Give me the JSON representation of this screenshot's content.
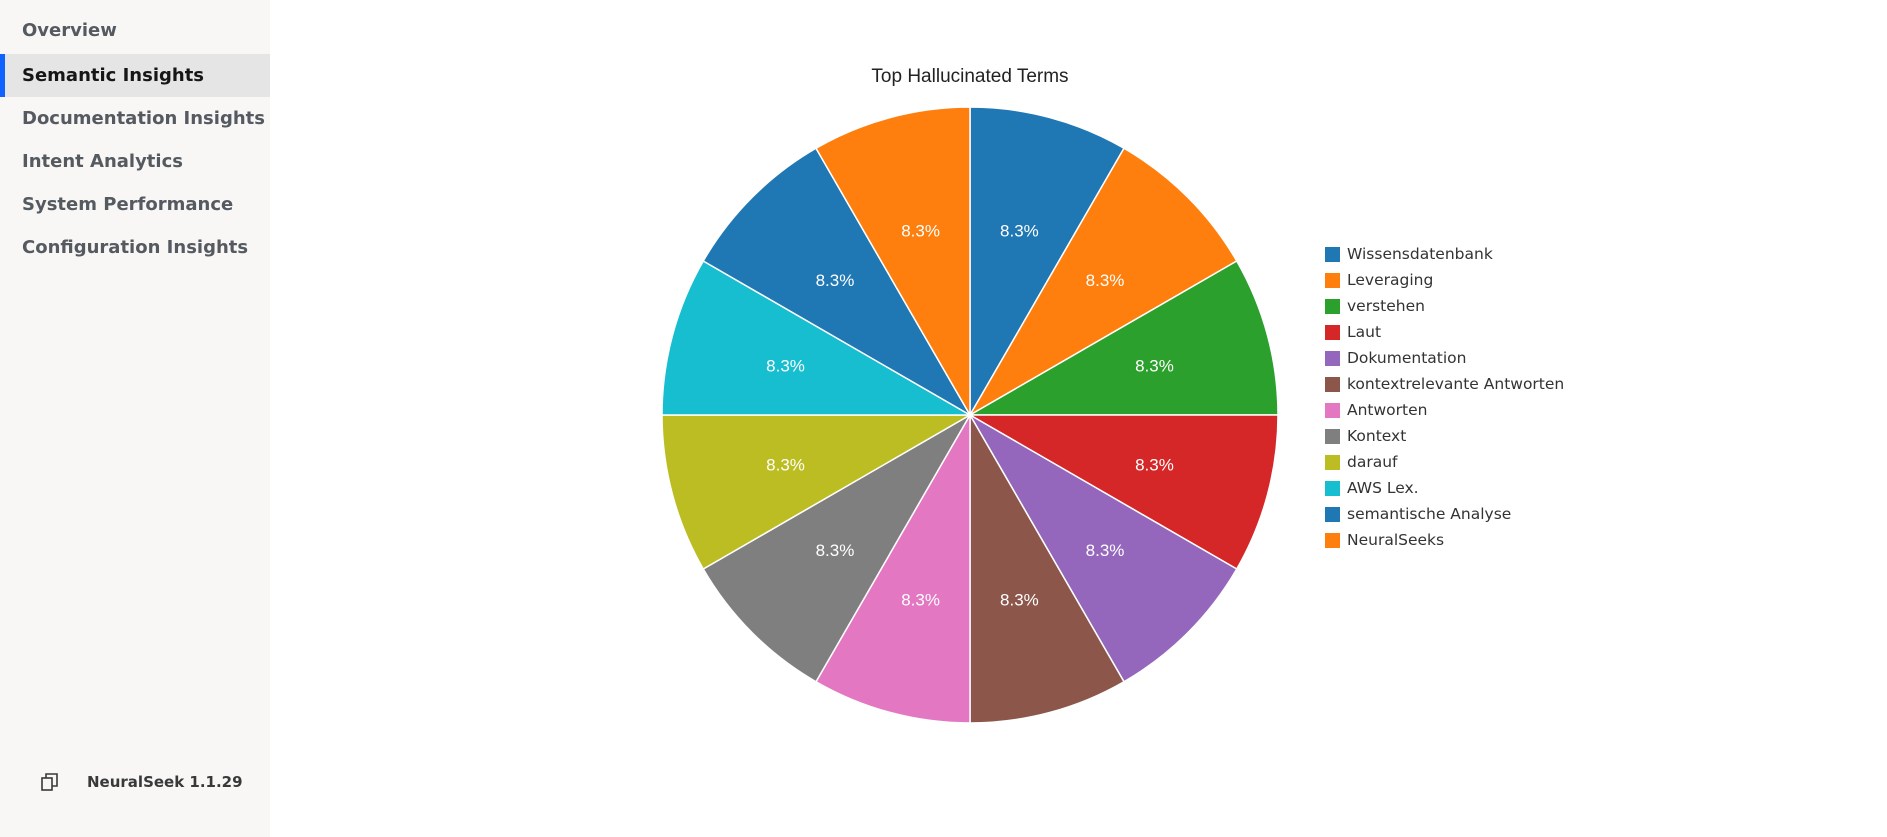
{
  "sidebar": {
    "items": [
      {
        "label": "Overview",
        "active": false
      },
      {
        "label": "Semantic Insights",
        "active": true
      },
      {
        "label": "Documentation Insights",
        "active": false
      },
      {
        "label": "Intent Analytics",
        "active": false
      },
      {
        "label": "System Performance",
        "active": false
      },
      {
        "label": "Configuration Insights",
        "active": false
      }
    ],
    "footer": {
      "icon": "copy-icon",
      "version": "NeuralSeek 1.1.29"
    }
  },
  "colors": {
    "accent": "#0f62fe"
  },
  "chart_data": {
    "type": "pie",
    "title": "Top Hallucinated Terms",
    "legend_position": "right",
    "slices": [
      {
        "label": "Wissensdatenbank",
        "value": 8.3,
        "color": "#1f77b4"
      },
      {
        "label": "Leveraging",
        "value": 8.3,
        "color": "#ff7f0e"
      },
      {
        "label": "verstehen",
        "value": 8.3,
        "color": "#2ca02c"
      },
      {
        "label": "Laut",
        "value": 8.3,
        "color": "#d62728"
      },
      {
        "label": "Dokumentation",
        "value": 8.3,
        "color": "#9467bd"
      },
      {
        "label": "kontextrelevante Antworten",
        "value": 8.3,
        "color": "#8c564b"
      },
      {
        "label": "Antworten",
        "value": 8.3,
        "color": "#e377c2"
      },
      {
        "label": "Kontext",
        "value": 8.3,
        "color": "#7f7f7f"
      },
      {
        "label": "darauf",
        "value": 8.3,
        "color": "#bcbd22"
      },
      {
        "label": "AWS Lex.",
        "value": 8.3,
        "color": "#17becf"
      },
      {
        "label": "semantische Analyse",
        "value": 8.3,
        "color": "#1f77b4"
      },
      {
        "label": "NeuralSeeks",
        "value": 8.3,
        "color": "#ff7f0e"
      }
    ],
    "slice_label_text": "8.3%"
  }
}
